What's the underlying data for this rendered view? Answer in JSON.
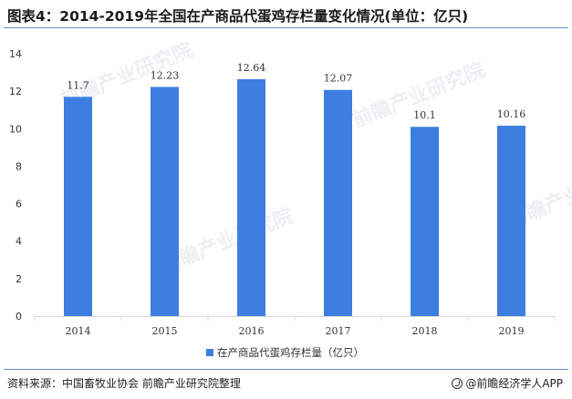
{
  "title": "图表4：2014-2019年全国在产商品代蛋鸡存栏量变化情况(单位：亿只)",
  "footer": {
    "source": "资料来源：中国畜牧业协会 前瞻产业研究院整理",
    "brand": "@前瞻经济学人APP"
  },
  "watermark": "前瞻产业研究院",
  "colors": {
    "bar": "#3d7fe0",
    "axis": "#d9d9d9",
    "rule": "#6b8fcf",
    "text": "#333333"
  },
  "chart_data": {
    "type": "bar",
    "categories": [
      "2014",
      "2015",
      "2016",
      "2017",
      "2018",
      "2019"
    ],
    "series": [
      {
        "name": "在产商品代蛋鸡存栏量（亿只）",
        "values": [
          11.7,
          12.23,
          12.64,
          12.07,
          10.1,
          10.16
        ]
      }
    ],
    "data_labels": [
      "11.7",
      "12.23",
      "12.64",
      "12.07",
      "10.1",
      "10.16"
    ],
    "yticks": [
      "0",
      "2",
      "4",
      "6",
      "8",
      "10",
      "12",
      "14"
    ],
    "ylim": [
      0,
      14
    ],
    "legend": "bottom-center",
    "grid": false
  }
}
